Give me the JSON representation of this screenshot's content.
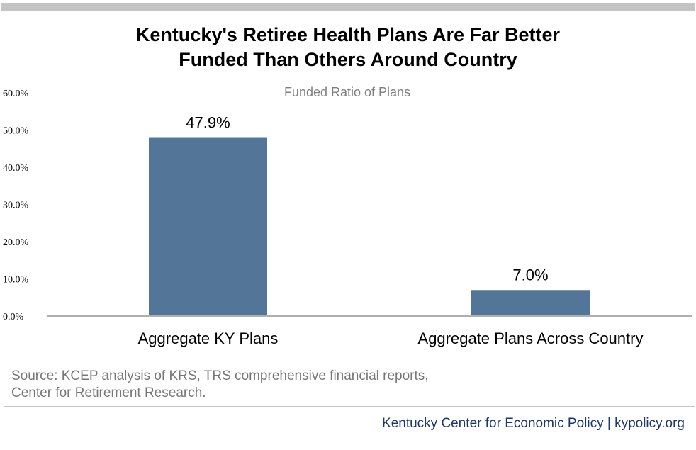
{
  "title_line1": "Kentucky's Retiree Health Plans Are Far Better",
  "title_line2": "Funded Than Others Around Country",
  "source_line1": "Source: KCEP analysis of KRS, TRS comprehensive financial reports,",
  "source_line2": "Center for Retirement Research.",
  "footer": "Kentucky Center for Economic Policy | kypolicy.org",
  "colors": {
    "bar": "#537597",
    "axis": "#b0b0b0",
    "title": "#000000",
    "source": "#777777",
    "footer": "#1f3864",
    "rule": "#c4c4c4"
  },
  "chart_data": {
    "type": "bar",
    "title": "Funded Ratio of Plans",
    "categories": [
      "Aggregate KY Plans",
      "Aggregate Plans Across Country"
    ],
    "values": [
      47.9,
      7.0
    ],
    "data_labels": [
      "47.9%",
      "7.0%"
    ],
    "yticks": [
      "0.0%",
      "10.0%",
      "20.0%",
      "30.0%",
      "40.0%",
      "50.0%",
      "60.0%"
    ],
    "ylim": [
      0,
      60
    ],
    "xlabel": "",
    "ylabel": "",
    "grid": false,
    "legend": "none"
  }
}
